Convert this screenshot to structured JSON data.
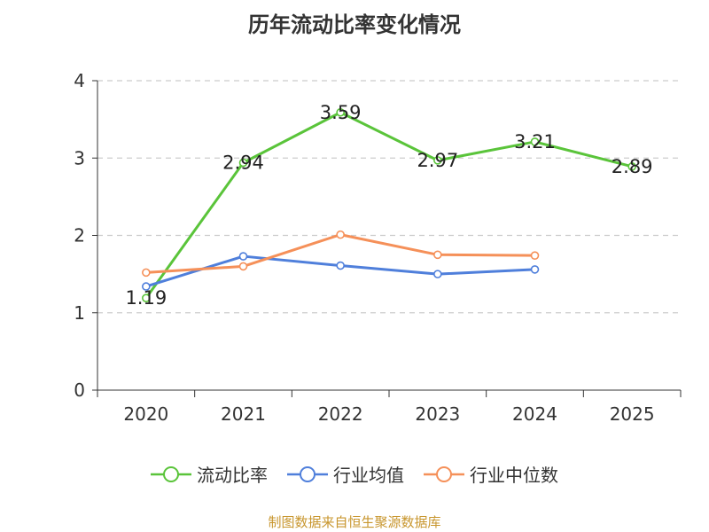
{
  "chart_data": {
    "type": "line",
    "title": "历年流动比率变化情况",
    "categories": [
      "2020",
      "2021",
      "2022",
      "2023",
      "2024",
      "2025"
    ],
    "ylim": [
      0,
      4
    ],
    "yticks": [
      0,
      1,
      2,
      3,
      4
    ],
    "grid": true,
    "legend_position": "bottom",
    "series": [
      {
        "name": "流动比率",
        "color": "#5ac43a",
        "values": [
          1.19,
          2.94,
          3.59,
          2.97,
          3.21,
          2.89
        ],
        "labels": [
          "1.19",
          "2.94",
          "3.59",
          "2.97",
          "3.21",
          "2.89"
        ],
        "show_labels": true
      },
      {
        "name": "行业均值",
        "color": "#4f7fdb",
        "values": [
          1.34,
          1.73,
          1.61,
          1.5,
          1.56,
          null
        ],
        "show_labels": false
      },
      {
        "name": "行业中位数",
        "color": "#f59059",
        "values": [
          1.52,
          1.6,
          2.01,
          1.75,
          1.74,
          null
        ],
        "show_labels": false
      }
    ]
  },
  "source_text": "制图数据来自恒生聚源数据库"
}
